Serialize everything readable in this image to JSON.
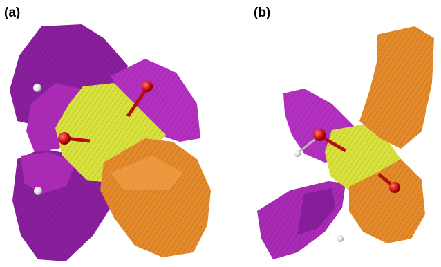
{
  "panels": [
    {
      "label": "(a)"
    },
    {
      "label": "(b)"
    }
  ],
  "colors": {
    "purple": "#8a1f9e",
    "magenta": "#b430c0",
    "yellow": "#d9e23c",
    "orange": "#e48a2a",
    "oxygen_red": "#d41414",
    "hydrogen_white": "#eeeeee"
  }
}
